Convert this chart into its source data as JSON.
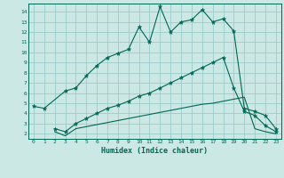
{
  "xlabel": "Humidex (Indice chaleur)",
  "background_color": "#cce8e4",
  "grid_color": "#99cccc",
  "line_color": "#006655",
  "xlim": [
    -0.5,
    23.5
  ],
  "ylim": [
    1.5,
    14.8
  ],
  "xticks": [
    0,
    1,
    2,
    3,
    4,
    5,
    6,
    7,
    8,
    9,
    10,
    11,
    12,
    13,
    14,
    15,
    16,
    17,
    18,
    19,
    20,
    21,
    22,
    23
  ],
  "yticks": [
    2,
    3,
    4,
    5,
    6,
    7,
    8,
    9,
    10,
    11,
    12,
    13,
    14
  ],
  "series1_x": [
    0,
    1,
    3,
    4,
    5,
    6,
    7,
    8,
    9,
    10,
    11,
    12,
    13,
    14,
    15,
    16,
    17,
    18,
    19,
    20,
    21,
    22,
    23
  ],
  "series1_y": [
    4.7,
    4.5,
    6.2,
    6.5,
    7.7,
    8.7,
    9.5,
    9.9,
    10.3,
    12.5,
    11.0,
    14.5,
    12.0,
    13.0,
    13.2,
    14.2,
    13.0,
    13.3,
    12.1,
    4.5,
    4.2,
    3.8,
    2.5
  ],
  "series2_x": [
    2,
    3,
    4,
    5,
    6,
    7,
    8,
    9,
    10,
    11,
    12,
    13,
    14,
    15,
    16,
    17,
    18,
    19,
    20,
    21,
    22,
    23
  ],
  "series2_y": [
    2.5,
    2.2,
    3.0,
    3.5,
    4.0,
    4.5,
    4.8,
    5.2,
    5.7,
    6.0,
    6.5,
    7.0,
    7.5,
    8.0,
    8.5,
    9.0,
    9.5,
    6.5,
    4.2,
    3.8,
    2.8,
    2.2
  ],
  "series3_x": [
    2,
    3,
    4,
    5,
    6,
    7,
    8,
    9,
    10,
    11,
    12,
    13,
    14,
    15,
    16,
    17,
    18,
    19,
    20,
    21,
    22,
    23
  ],
  "series3_y": [
    2.2,
    1.8,
    2.5,
    2.7,
    2.9,
    3.1,
    3.3,
    3.5,
    3.7,
    3.9,
    4.1,
    4.3,
    4.5,
    4.7,
    4.9,
    5.0,
    5.2,
    5.4,
    5.6,
    2.5,
    2.2,
    2.0
  ]
}
